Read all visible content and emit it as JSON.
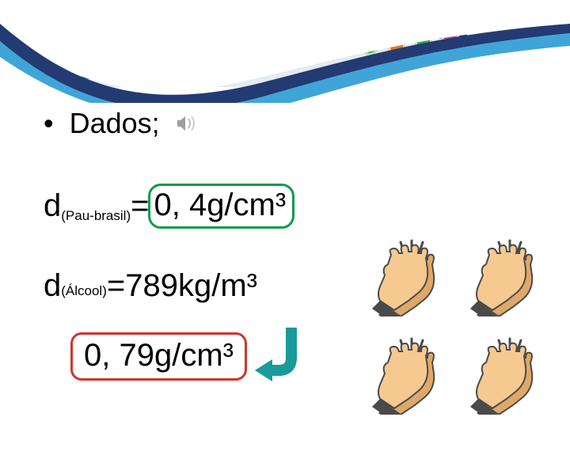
{
  "banner": {
    "lab_bg_color": "#e5ebf0",
    "swoosh_dark": "#233a73",
    "swoosh_light": "#3fa5d8",
    "rack_color": "#2c4452",
    "tubes": [
      {
        "body": "#b6e3b8",
        "liquid": "#2bb24a",
        "liquid_h": 22
      },
      {
        "body": "#f6cfa8",
        "liquid": "#e07a28",
        "liquid_h": 30
      },
      {
        "body": "#b6e3b8",
        "liquid": "#2bb24a",
        "liquid_h": 26
      },
      {
        "body": "#e8b9d0",
        "liquid": "#c24a85",
        "liquid_h": 34
      }
    ],
    "circle_colors": [
      "#8bbf7a",
      "#e07a28",
      "#5aa1c7",
      "#e8b92d",
      "#7a7a7a",
      "#d24a4a"
    ]
  },
  "content": {
    "dados_label": "Dados;",
    "speaker_color": "#8a8a8a",
    "formula1": {
      "d": "d",
      "sub": "(Pau-brasil)",
      "eq": "=",
      "value": "0, 4g/cm³",
      "box_color": "#0f9b4a"
    },
    "formula2": {
      "d": "d",
      "sub": "(Álcool)",
      "rhs": "=789kg/m³"
    },
    "result": {
      "value": "0, 79g/cm³",
      "box_color": "#d0342c"
    },
    "arrow_color": "#1a9a9a",
    "clap": {
      "skin": "#f5c98f",
      "skin_dark": "#e0a868",
      "line": "#4a4a4a",
      "cuff": "#4a4a4a"
    }
  }
}
